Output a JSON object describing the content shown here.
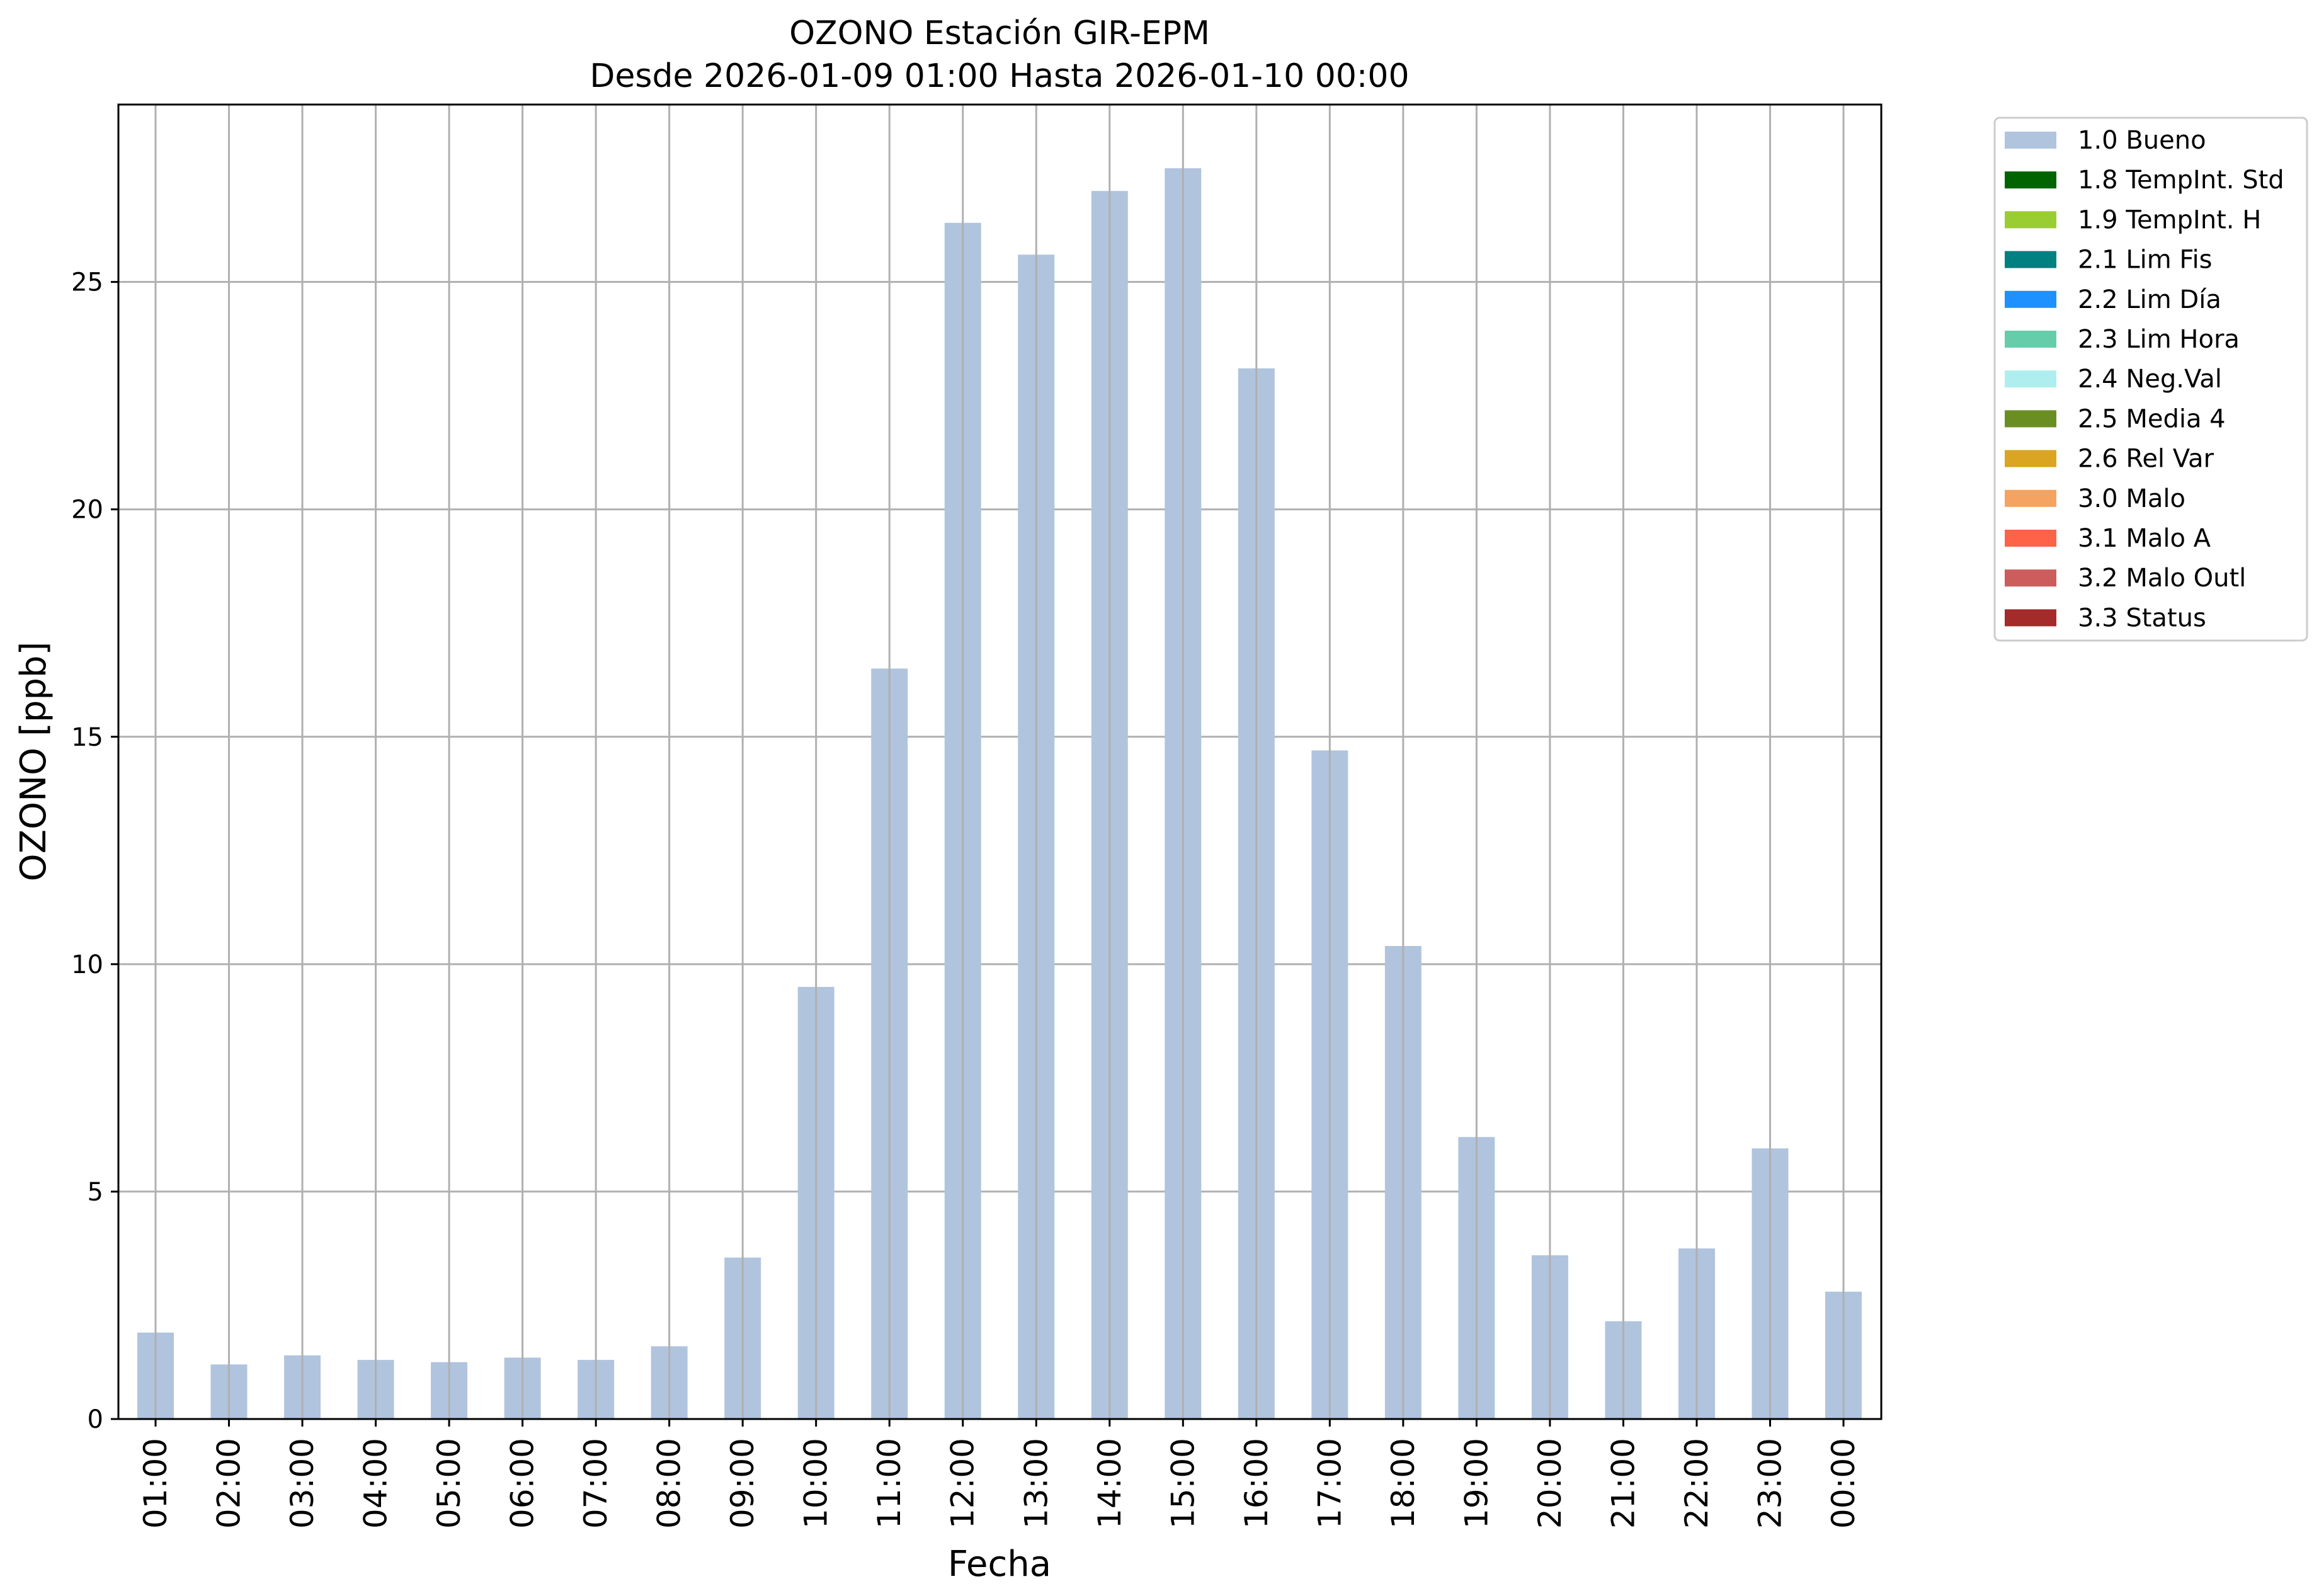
{
  "chart_data": {
    "type": "bar",
    "title": "OZONO Estación GIR-EPM",
    "subtitle": "Desde 2026-01-09 01:00 Hasta 2026-01-10 00:00",
    "xlabel": "Fecha",
    "ylabel": "OZONO [ppb]",
    "ylim": [
      0,
      28.9
    ],
    "yticks": [
      0,
      5,
      10,
      15,
      20,
      25
    ],
    "grid": true,
    "legend_placement": "outside-top-right",
    "categories": [
      "01:00",
      "02:00",
      "03:00",
      "04:00",
      "05:00",
      "06:00",
      "07:00",
      "08:00",
      "09:00",
      "10:00",
      "11:00",
      "12:00",
      "13:00",
      "14:00",
      "15:00",
      "16:00",
      "17:00",
      "18:00",
      "19:00",
      "20:00",
      "21:00",
      "22:00",
      "23:00",
      "00:00"
    ],
    "series": [
      {
        "name": "1.0 Bueno",
        "color": "#b0c4de",
        "values": [
          1.9,
          1.2,
          1.4,
          1.3,
          1.25,
          1.35,
          1.3,
          1.6,
          3.55,
          9.5,
          16.5,
          26.3,
          25.6,
          27.0,
          27.5,
          23.1,
          14.7,
          10.4,
          6.2,
          3.6,
          2.15,
          3.75,
          5.95,
          2.8
        ]
      }
    ],
    "legend": [
      {
        "label": "1.0 Bueno",
        "color": "#b0c4de"
      },
      {
        "label": "1.8 TempInt. Std",
        "color": "#006400"
      },
      {
        "label": "1.9 TempInt. H",
        "color": "#9acd32"
      },
      {
        "label": "2.1 Lim Fis",
        "color": "#008080"
      },
      {
        "label": "2.2 Lim Día",
        "color": "#1e90ff"
      },
      {
        "label": "2.3 Lim Hora",
        "color": "#66cdaa"
      },
      {
        "label": "2.4 Neg.Val",
        "color": "#afeeee"
      },
      {
        "label": "2.5 Media 4",
        "color": "#6b8e23"
      },
      {
        "label": "2.6 Rel Var",
        "color": "#daa520"
      },
      {
        "label": "3.0 Malo",
        "color": "#f4a460"
      },
      {
        "label": "3.1 Malo A",
        "color": "#ff6347"
      },
      {
        "label": "3.2 Malo Outl",
        "color": "#cd5c5c"
      },
      {
        "label": "3.3 Status",
        "color": "#a52a2a"
      }
    ]
  }
}
